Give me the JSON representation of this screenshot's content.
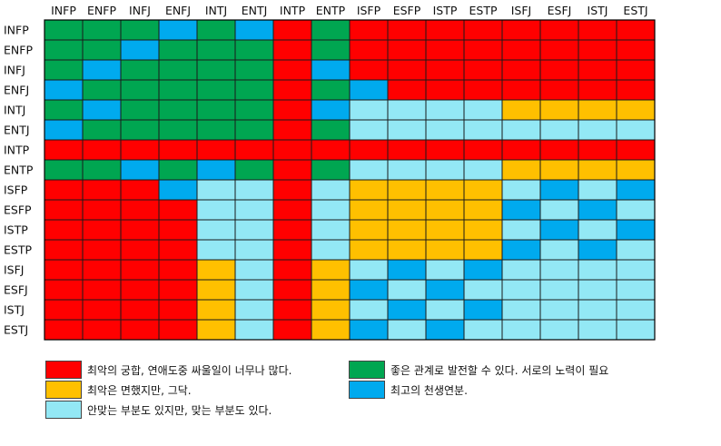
{
  "chart_data": {
    "type": "heatmap",
    "types": [
      "INFP",
      "ENFP",
      "INFJ",
      "ENFJ",
      "INTJ",
      "ENTJ",
      "INTP",
      "ENTP",
      "ISFP",
      "ESFP",
      "ISTP",
      "ESTP",
      "ISFJ",
      "ESFJ",
      "ISTJ",
      "ESTJ"
    ],
    "categories": {
      "R": {
        "color": "#ff0000",
        "label": "최악의 궁합, 연애도중 싸울일이 너무나 많다."
      },
      "O": {
        "color": "#ffc000",
        "label": "최악은 면했지만, 그닥."
      },
      "L": {
        "color": "#93e8f5",
        "label": "안맞는 부분도 있지만, 맞는 부분도 있다."
      },
      "G": {
        "color": "#00a651",
        "label": "좋은 관계로 발전할 수 있다. 서로의 노력이 필요"
      },
      "B": {
        "color": "#00aaee",
        "label": "최고의 천생연분."
      }
    },
    "matrix": [
      [
        "G",
        "G",
        "G",
        "B",
        "G",
        "B",
        "R",
        "G",
        "R",
        "R",
        "R",
        "R",
        "R",
        "R",
        "R",
        "R"
      ],
      [
        "G",
        "G",
        "B",
        "G",
        "G",
        "G",
        "R",
        "G",
        "R",
        "R",
        "R",
        "R",
        "R",
        "R",
        "R",
        "R"
      ],
      [
        "G",
        "B",
        "G",
        "G",
        "G",
        "G",
        "R",
        "B",
        "R",
        "R",
        "R",
        "R",
        "R",
        "R",
        "R",
        "R"
      ],
      [
        "B",
        "G",
        "G",
        "G",
        "G",
        "G",
        "R",
        "G",
        "B",
        "R",
        "R",
        "R",
        "R",
        "R",
        "R",
        "R"
      ],
      [
        "G",
        "B",
        "G",
        "G",
        "G",
        "G",
        "R",
        "B",
        "L",
        "L",
        "L",
        "L",
        "O",
        "O",
        "O",
        "O"
      ],
      [
        "B",
        "G",
        "G",
        "G",
        "G",
        "G",
        "R",
        "G",
        "L",
        "L",
        "L",
        "L",
        "L",
        "L",
        "L",
        "L"
      ],
      [
        "R",
        "R",
        "R",
        "R",
        "R",
        "R",
        "R",
        "R",
        "R",
        "R",
        "R",
        "R",
        "R",
        "R",
        "R",
        "R"
      ],
      [
        "G",
        "G",
        "B",
        "G",
        "B",
        "G",
        "R",
        "G",
        "L",
        "L",
        "L",
        "L",
        "O",
        "O",
        "O",
        "O"
      ],
      [
        "R",
        "R",
        "R",
        "B",
        "L",
        "L",
        "R",
        "L",
        "O",
        "O",
        "O",
        "O",
        "L",
        "B",
        "L",
        "B"
      ],
      [
        "R",
        "R",
        "R",
        "R",
        "L",
        "L",
        "R",
        "L",
        "O",
        "O",
        "O",
        "O",
        "B",
        "L",
        "B",
        "L"
      ],
      [
        "R",
        "R",
        "R",
        "R",
        "L",
        "L",
        "R",
        "L",
        "O",
        "O",
        "O",
        "O",
        "L",
        "B",
        "L",
        "B"
      ],
      [
        "R",
        "R",
        "R",
        "R",
        "L",
        "L",
        "R",
        "L",
        "O",
        "O",
        "O",
        "O",
        "B",
        "L",
        "B",
        "L"
      ],
      [
        "R",
        "R",
        "R",
        "R",
        "O",
        "L",
        "R",
        "O",
        "L",
        "B",
        "L",
        "B",
        "L",
        "L",
        "L",
        "L"
      ],
      [
        "R",
        "R",
        "R",
        "R",
        "O",
        "L",
        "R",
        "O",
        "B",
        "L",
        "B",
        "L",
        "L",
        "L",
        "L",
        "L"
      ],
      [
        "R",
        "R",
        "R",
        "R",
        "O",
        "L",
        "R",
        "O",
        "L",
        "B",
        "L",
        "B",
        "L",
        "L",
        "L",
        "L"
      ],
      [
        "R",
        "R",
        "R",
        "R",
        "O",
        "L",
        "R",
        "O",
        "B",
        "L",
        "B",
        "L",
        "L",
        "L",
        "L",
        "L"
      ]
    ],
    "legend_order": [
      "R",
      "O",
      "L",
      "G",
      "B"
    ]
  }
}
